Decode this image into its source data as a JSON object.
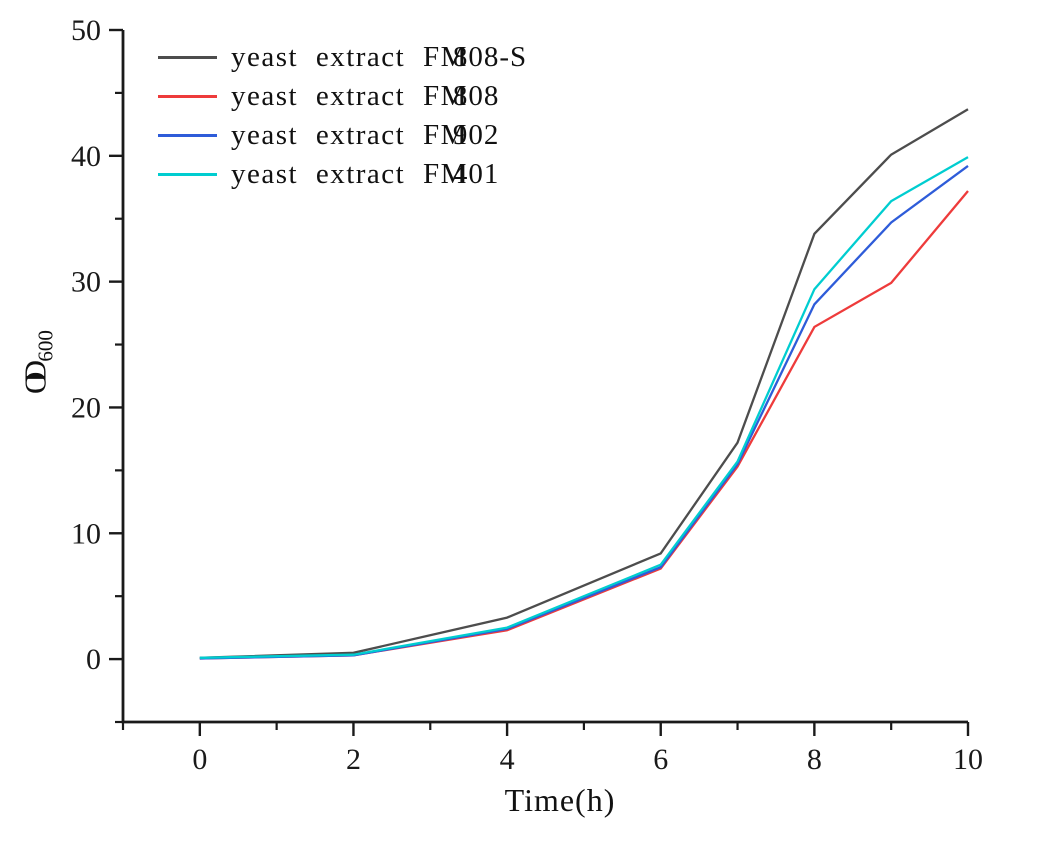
{
  "figure": {
    "background_color": "#ffffff",
    "axis_color": "#1a1a1a"
  },
  "chart_data": {
    "type": "line",
    "title": "",
    "xlabel": "Time(h)",
    "ylabel": "OD",
    "ylabel_subscript": "600",
    "xlim": [
      -1,
      10
    ],
    "ylim": [
      -5,
      50
    ],
    "xticks_major": [
      0,
      2,
      4,
      6,
      8,
      10
    ],
    "xticks_minor": [
      -1,
      1,
      3,
      5,
      7,
      9
    ],
    "yticks_major": [
      0,
      10,
      20,
      30,
      40,
      50
    ],
    "yticks_minor": [
      -5,
      5,
      15,
      25,
      35,
      45
    ],
    "grid": false,
    "legend_position": "top-left-inside",
    "x": [
      0,
      2,
      4,
      6,
      7,
      8,
      9,
      10
    ],
    "series": [
      {
        "name": "yeast extract FM808-S",
        "name_prefix": "yeast extract FM",
        "name_code": "808-S",
        "color": "#4d4d4d",
        "values": [
          0.1,
          0.5,
          3.3,
          8.4,
          17.2,
          33.8,
          40.1,
          43.7
        ]
      },
      {
        "name": "yeast extract FM808",
        "name_prefix": "yeast extract FM",
        "name_code": "808",
        "color": "#ee3b3b",
        "values": [
          0.05,
          0.3,
          2.3,
          7.2,
          15.3,
          26.4,
          29.9,
          37.2
        ]
      },
      {
        "name": "yeast extract FM902",
        "name_prefix": "yeast extract FM",
        "name_code": "902",
        "color": "#2e5cd9",
        "values": [
          0.05,
          0.3,
          2.4,
          7.3,
          15.5,
          28.2,
          34.7,
          39.2
        ]
      },
      {
        "name": "yeast extract FM401",
        "name_prefix": "yeast extract FM",
        "name_code": "401",
        "color": "#00cdd0",
        "values": [
          0.1,
          0.35,
          2.5,
          7.5,
          15.7,
          29.4,
          36.4,
          39.9
        ]
      }
    ]
  }
}
